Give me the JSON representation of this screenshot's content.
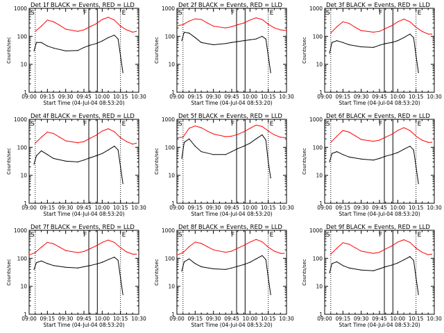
{
  "common": {
    "xlabel": "Start Time (04-Jul-04 08:53:20)",
    "ylabel": "Counts/sec",
    "x_ticks": [
      "09:00",
      "09:15",
      "09:30",
      "09:45",
      "10:00",
      "10:15",
      "10:30"
    ],
    "y_ticks": [
      "1",
      "10",
      "100",
      "1000"
    ],
    "marker_labels": {
      "s": "S",
      "f": "F",
      "e": "E"
    },
    "colors": {
      "events": "#000000",
      "lld": "#ff0000"
    }
  },
  "chart_data": [
    {
      "type": "line",
      "title": "Det 1f BLACK = Events, RED = LLD",
      "yscale": "log",
      "ylim": [
        1,
        1000
      ],
      "xlim": [
        "09:00",
        "10:30"
      ],
      "markers": {
        "s_dotted": "09:05",
        "f_solid": [
          "09:49",
          "09:56"
        ],
        "e_dotted": "10:15"
      },
      "series": [
        {
          "key": "events",
          "x": [
            "09:04",
            "09:06",
            "09:10",
            "09:15",
            "09:20",
            "09:30",
            "09:40",
            "09:45",
            "09:50",
            "09:55",
            "10:00",
            "10:05",
            "10:10",
            "10:13",
            "10:15",
            "10:17"
          ],
          "y": [
            30,
            60,
            60,
            45,
            38,
            30,
            31,
            40,
            48,
            55,
            68,
            90,
            110,
            80,
            20,
            5
          ]
        },
        {
          "key": "lld",
          "x": [
            "09:05",
            "09:10",
            "09:15",
            "09:20",
            "09:25",
            "09:30",
            "09:40",
            "09:45",
            "09:50",
            "09:55",
            "10:00",
            "10:05",
            "10:10",
            "10:15",
            "10:20",
            "10:25",
            "10:28"
          ],
          "y": [
            150,
            230,
            380,
            330,
            250,
            180,
            150,
            170,
            220,
            280,
            400,
            480,
            380,
            230,
            170,
            140,
            150
          ]
        }
      ]
    },
    {
      "type": "line",
      "title": "Det 2f BLACK = Events, RED = LLD",
      "yscale": "log",
      "ylim": [
        1,
        1000
      ],
      "xlim": [
        "09:00",
        "10:30"
      ],
      "markers": {
        "s_dotted": "09:05",
        "f_solid": [
          "09:49",
          "09:56"
        ],
        "e_dotted": "10:15"
      },
      "series": [
        {
          "key": "events",
          "x": [
            "09:04",
            "09:06",
            "09:10",
            "09:15",
            "09:20",
            "09:30",
            "09:40",
            "09:45",
            "09:50",
            "09:55",
            "10:00",
            "10:05",
            "10:10",
            "10:13",
            "10:15",
            "10:17"
          ],
          "y": [
            70,
            140,
            130,
            90,
            60,
            50,
            55,
            60,
            65,
            70,
            75,
            80,
            100,
            80,
            20,
            5
          ]
        },
        {
          "key": "lld",
          "x": [
            "09:00",
            "09:05",
            "09:10",
            "09:15",
            "09:20",
            "09:25",
            "09:30",
            "09:40",
            "09:45",
            "09:50",
            "09:55",
            "10:00",
            "10:05",
            "10:10",
            "10:15",
            "10:20",
            "10:25",
            "10:30"
          ],
          "y": [
            240,
            260,
            350,
            420,
            400,
            300,
            230,
            200,
            220,
            260,
            300,
            380,
            460,
            400,
            270,
            200,
            170,
            160
          ]
        }
      ]
    },
    {
      "type": "line",
      "title": "Det 3f BLACK = Events, RED = LLD",
      "yscale": "log",
      "ylim": [
        1,
        1000
      ],
      "xlim": [
        "09:00",
        "10:30"
      ],
      "markers": {
        "s_dotted": "09:05",
        "f_solid": [
          "09:49",
          "09:56"
        ],
        "e_dotted": "10:15"
      },
      "series": [
        {
          "key": "events",
          "x": [
            "09:04",
            "09:06",
            "09:10",
            "09:15",
            "09:20",
            "09:30",
            "09:40",
            "09:45",
            "09:50",
            "09:55",
            "10:00",
            "10:05",
            "10:10",
            "10:13",
            "10:15",
            "10:17"
          ],
          "y": [
            25,
            60,
            70,
            60,
            50,
            42,
            40,
            48,
            55,
            60,
            70,
            90,
            120,
            90,
            20,
            5
          ]
        },
        {
          "key": "lld",
          "x": [
            "09:05",
            "09:10",
            "09:15",
            "09:20",
            "09:25",
            "09:30",
            "09:40",
            "09:45",
            "09:50",
            "09:55",
            "10:00",
            "10:05",
            "10:10",
            "10:15",
            "10:20",
            "10:25",
            "10:28"
          ],
          "y": [
            130,
            220,
            330,
            290,
            210,
            160,
            140,
            150,
            190,
            240,
            330,
            410,
            330,
            210,
            150,
            120,
            120
          ]
        }
      ]
    },
    {
      "type": "line",
      "title": "Det 4f BLACK = Events, RED = LLD",
      "yscale": "log",
      "ylim": [
        1,
        1000
      ],
      "xlim": [
        "09:00",
        "10:30"
      ],
      "markers": {
        "s_dotted": "09:05",
        "f_solid": [
          "09:49",
          "09:56"
        ],
        "e_dotted": "10:15"
      },
      "series": [
        {
          "key": "events",
          "x": [
            "09:04",
            "09:06",
            "09:10",
            "09:15",
            "09:20",
            "09:30",
            "09:40",
            "09:45",
            "09:50",
            "09:55",
            "10:00",
            "10:05",
            "10:10",
            "10:13",
            "10:15",
            "10:17"
          ],
          "y": [
            25,
            50,
            75,
            55,
            40,
            32,
            30,
            35,
            42,
            50,
            60,
            80,
            110,
            80,
            20,
            5
          ]
        },
        {
          "key": "lld",
          "x": [
            "09:05",
            "09:10",
            "09:15",
            "09:20",
            "09:25",
            "09:30",
            "09:40",
            "09:45",
            "09:50",
            "09:55",
            "10:00",
            "10:05",
            "10:10",
            "10:15",
            "10:20",
            "10:25",
            "10:28"
          ],
          "y": [
            140,
            230,
            350,
            310,
            230,
            170,
            145,
            160,
            210,
            270,
            380,
            460,
            360,
            220,
            160,
            130,
            140
          ]
        }
      ]
    },
    {
      "type": "line",
      "title": "Det 5f BLACK = Events, RED = LLD",
      "yscale": "log",
      "ylim": [
        1,
        1000
      ],
      "xlim": [
        "09:00",
        "10:30"
      ],
      "markers": {
        "s_dotted": "09:05",
        "f_solid": [
          "09:49",
          "09:56"
        ],
        "e_dotted": "10:15"
      },
      "series": [
        {
          "key": "events",
          "x": [
            "09:04",
            "09:06",
            "09:10",
            "09:15",
            "09:20",
            "09:30",
            "09:40",
            "09:45",
            "09:50",
            "09:55",
            "10:00",
            "10:05",
            "10:10",
            "10:13",
            "10:15",
            "10:17"
          ],
          "y": [
            40,
            150,
            200,
            110,
            70,
            55,
            55,
            70,
            90,
            110,
            140,
            200,
            280,
            180,
            30,
            8
          ]
        },
        {
          "key": "lld",
          "x": [
            "09:00",
            "09:05",
            "09:10",
            "09:15",
            "09:20",
            "09:25",
            "09:30",
            "09:40",
            "09:45",
            "09:50",
            "09:55",
            "10:00",
            "10:05",
            "10:10",
            "10:15",
            "10:20",
            "10:25",
            "10:30"
          ],
          "y": [
            220,
            230,
            480,
            580,
            500,
            380,
            300,
            240,
            250,
            290,
            360,
            480,
            620,
            560,
            380,
            280,
            230,
            220
          ]
        }
      ]
    },
    {
      "type": "line",
      "title": "Det 6f BLACK = Events, RED = LLD",
      "yscale": "log",
      "ylim": [
        1,
        1000
      ],
      "xlim": [
        "09:00",
        "10:30"
      ],
      "markers": {
        "s_dotted": "09:05",
        "f_solid": [
          "09:49",
          "09:56"
        ],
        "e_dotted": "10:15"
      },
      "series": [
        {
          "key": "events",
          "x": [
            "09:04",
            "09:06",
            "09:10",
            "09:15",
            "09:20",
            "09:30",
            "09:40",
            "09:45",
            "09:50",
            "09:55",
            "10:00",
            "10:05",
            "10:10",
            "10:13",
            "10:15",
            "10:17"
          ],
          "y": [
            30,
            60,
            70,
            55,
            45,
            38,
            35,
            40,
            48,
            55,
            65,
            85,
            110,
            80,
            20,
            5
          ]
        },
        {
          "key": "lld",
          "x": [
            "09:05",
            "09:10",
            "09:15",
            "09:20",
            "09:25",
            "09:30",
            "09:40",
            "09:45",
            "09:50",
            "09:55",
            "10:00",
            "10:05",
            "10:10",
            "10:15",
            "10:20",
            "10:25",
            "10:28"
          ],
          "y": [
            150,
            250,
            400,
            350,
            260,
            190,
            165,
            180,
            230,
            290,
            400,
            500,
            400,
            250,
            180,
            150,
            150
          ]
        }
      ]
    },
    {
      "type": "line",
      "title": "Det 7f BLACK = Events, RED = LLD",
      "yscale": "log",
      "ylim": [
        1,
        1000
      ],
      "xlim": [
        "09:00",
        "10:30"
      ],
      "markers": {
        "s_dotted": "09:05",
        "f_solid": [
          "09:49",
          "09:56"
        ],
        "e_dotted": "10:15"
      },
      "series": [
        {
          "key": "events",
          "x": [
            "09:04",
            "09:06",
            "09:10",
            "09:15",
            "09:20",
            "09:30",
            "09:40",
            "09:45",
            "09:50",
            "09:55",
            "10:00",
            "10:05",
            "10:10",
            "10:13",
            "10:15",
            "10:17"
          ],
          "y": [
            40,
            70,
            80,
            65,
            55,
            48,
            45,
            50,
            55,
            62,
            72,
            90,
            110,
            85,
            20,
            5
          ]
        },
        {
          "key": "lld",
          "x": [
            "09:00",
            "09:05",
            "09:10",
            "09:15",
            "09:20",
            "09:25",
            "09:30",
            "09:40",
            "09:45",
            "09:50",
            "09:55",
            "10:00",
            "10:05",
            "10:10",
            "10:15",
            "10:20",
            "10:25",
            "10:28"
          ],
          "y": [
            130,
            160,
            250,
            370,
            330,
            250,
            190,
            160,
            175,
            220,
            280,
            370,
            450,
            370,
            240,
            170,
            140,
            140
          ]
        }
      ]
    },
    {
      "type": "line",
      "title": "Det 8f BLACK = Events, RED = LLD",
      "yscale": "log",
      "ylim": [
        1,
        1000
      ],
      "xlim": [
        "09:00",
        "10:30"
      ],
      "markers": {
        "s_dotted": "09:05",
        "f_solid": [
          "09:49",
          "09:56"
        ],
        "e_dotted": "10:15"
      },
      "series": [
        {
          "key": "events",
          "x": [
            "09:04",
            "09:06",
            "09:10",
            "09:15",
            "09:20",
            "09:30",
            "09:40",
            "09:45",
            "09:50",
            "09:55",
            "10:00",
            "10:05",
            "10:10",
            "10:13",
            "10:15",
            "10:17"
          ],
          "y": [
            35,
            75,
            95,
            65,
            50,
            42,
            40,
            45,
            52,
            60,
            72,
            95,
            125,
            90,
            20,
            5
          ]
        },
        {
          "key": "lld",
          "x": [
            "09:00",
            "09:05",
            "09:10",
            "09:15",
            "09:20",
            "09:25",
            "09:30",
            "09:40",
            "09:45",
            "09:50",
            "09:55",
            "10:00",
            "10:05",
            "10:10",
            "10:15",
            "10:20",
            "10:25",
            "10:28"
          ],
          "y": [
            130,
            160,
            260,
            380,
            340,
            260,
            200,
            165,
            180,
            230,
            290,
            380,
            470,
            390,
            250,
            180,
            150,
            150
          ]
        }
      ]
    },
    {
      "type": "line",
      "title": "Det 9f BLACK = Events, RED = LLD",
      "yscale": "log",
      "ylim": [
        1,
        1000
      ],
      "xlim": [
        "09:00",
        "10:30"
      ],
      "markers": {
        "s_dotted": "09:05",
        "f_solid": [
          "09:49",
          "09:56"
        ],
        "e_dotted": "10:15"
      },
      "series": [
        {
          "key": "events",
          "x": [
            "09:04",
            "09:06",
            "09:10",
            "09:15",
            "09:20",
            "09:30",
            "09:40",
            "09:45",
            "09:50",
            "09:55",
            "10:00",
            "10:05",
            "10:10",
            "10:13",
            "10:15",
            "10:17"
          ],
          "y": [
            30,
            65,
            75,
            55,
            45,
            38,
            36,
            42,
            50,
            57,
            68,
            88,
            115,
            85,
            20,
            5
          ]
        },
        {
          "key": "lld",
          "x": [
            "09:05",
            "09:10",
            "09:15",
            "09:20",
            "09:25",
            "09:30",
            "09:40",
            "09:45",
            "09:50",
            "09:55",
            "10:00",
            "10:05",
            "10:10",
            "10:15",
            "10:20",
            "10:25",
            "10:28"
          ],
          "y": [
            140,
            230,
            360,
            320,
            240,
            180,
            150,
            165,
            215,
            275,
            380,
            460,
            370,
            230,
            165,
            135,
            140
          ]
        }
      ]
    }
  ]
}
